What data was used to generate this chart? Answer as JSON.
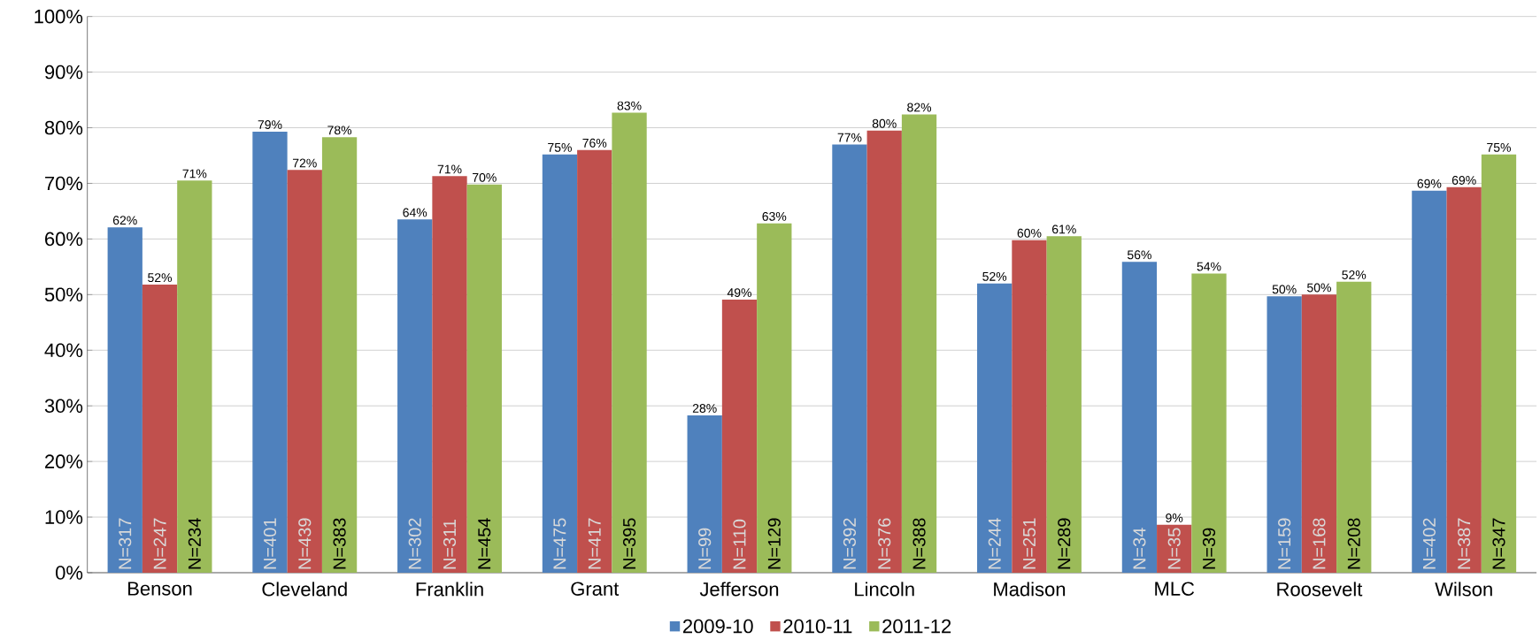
{
  "chart_data": {
    "type": "bar",
    "categories": [
      "Benson",
      "Cleveland",
      "Franklin",
      "Grant",
      "Jefferson",
      "Lincoln",
      "Madison",
      "MLC",
      "Roosevelt",
      "Wilson"
    ],
    "series": [
      {
        "name": "2009-10",
        "color": "#4f81bd",
        "values": [
          62.1,
          79.3,
          63.5,
          75.2,
          28.3,
          77.0,
          52.0,
          55.9,
          49.7,
          68.7
        ],
        "value_labels": [
          "62%",
          "79%",
          "64%",
          "75%",
          "28%",
          "77%",
          "52%",
          "56%",
          "50%",
          "69%"
        ]
      },
      {
        "name": "2010-11",
        "color": "#c0504d",
        "values": [
          51.8,
          72.4,
          71.3,
          76.0,
          49.1,
          79.5,
          59.8,
          8.6,
          50.0,
          69.3
        ],
        "value_labels": [
          "52%",
          "72%",
          "71%",
          "76%",
          "49%",
          "80%",
          "60%",
          "9%",
          "50%",
          "69%"
        ]
      },
      {
        "name": "2011-12",
        "color": "#9bbb59",
        "values": [
          70.5,
          78.3,
          69.8,
          82.7,
          62.8,
          82.4,
          60.5,
          53.8,
          52.3,
          75.2
        ],
        "value_labels": [
          "71%",
          "78%",
          "70%",
          "83%",
          "63%",
          "82%",
          "61%",
          "54%",
          "52%",
          "75%"
        ]
      }
    ],
    "annotations": [
      "N=317",
      "N=247",
      "N=234",
      "N=401",
      "N=439",
      "N=383",
      "N=302",
      "N=311",
      "N=454",
      "N=475",
      "N=417",
      "N=395",
      "N=99",
      "N=110",
      "N=129",
      "N=392",
      "N=376",
      "N=388",
      "N=244",
      "N=251",
      "N=289",
      "N=34",
      "N=35",
      "N=39",
      "N=159",
      "N=168",
      "N=208",
      "N=402",
      "N=387",
      "N=347"
    ],
    "ylim": [
      0,
      100
    ],
    "yticks": [
      {
        "value": 0,
        "label": "0%"
      },
      {
        "value": 10,
        "label": "10%"
      },
      {
        "value": 20,
        "label": "20%"
      },
      {
        "value": 30,
        "label": "30%"
      },
      {
        "value": 40,
        "label": "40%"
      },
      {
        "value": 50,
        "label": "50%"
      },
      {
        "value": 60,
        "label": "60%"
      },
      {
        "value": 70,
        "label": "70%"
      },
      {
        "value": 80,
        "label": "80%"
      },
      {
        "value": 90,
        "label": "90%"
      },
      {
        "value": 100,
        "label": "100%"
      }
    ],
    "grid": "y",
    "legend": "bottom"
  }
}
